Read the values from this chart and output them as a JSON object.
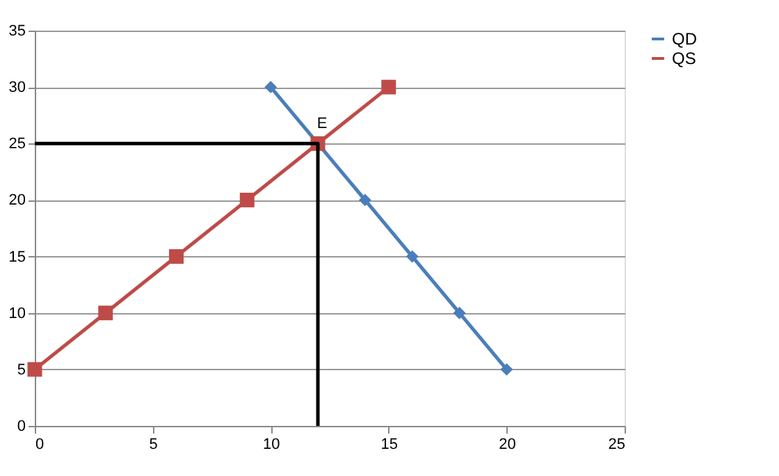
{
  "chart_data": {
    "type": "line",
    "xlim": [
      0,
      25
    ],
    "xticks": [
      0,
      5,
      10,
      15,
      20,
      25
    ],
    "ylim": [
      0,
      35
    ],
    "yticks": [
      0,
      5,
      10,
      15,
      20,
      25,
      30,
      35
    ],
    "grid": "y",
    "legend": "right",
    "line_style": "solid",
    "series": [
      {
        "name": "QD",
        "color": "#4a7ebb",
        "marker": "diamond",
        "x": [
          10,
          12,
          14,
          16,
          18,
          20
        ],
        "values": [
          30,
          null,
          20,
          15,
          10,
          5
        ]
      },
      {
        "name": "QS",
        "color": "#be4b48",
        "marker": "square",
        "x": [
          0,
          3,
          6,
          9,
          12,
          15
        ],
        "values": [
          5,
          10,
          15,
          20,
          25,
          30
        ]
      },
      {
        "color": "#000000",
        "marker": "none",
        "x": [
          0,
          12,
          12
        ],
        "values": [
          25,
          25,
          0
        ]
      }
    ],
    "annotations": [
      {
        "text": "E",
        "x": 12,
        "y": 25
      }
    ]
  }
}
